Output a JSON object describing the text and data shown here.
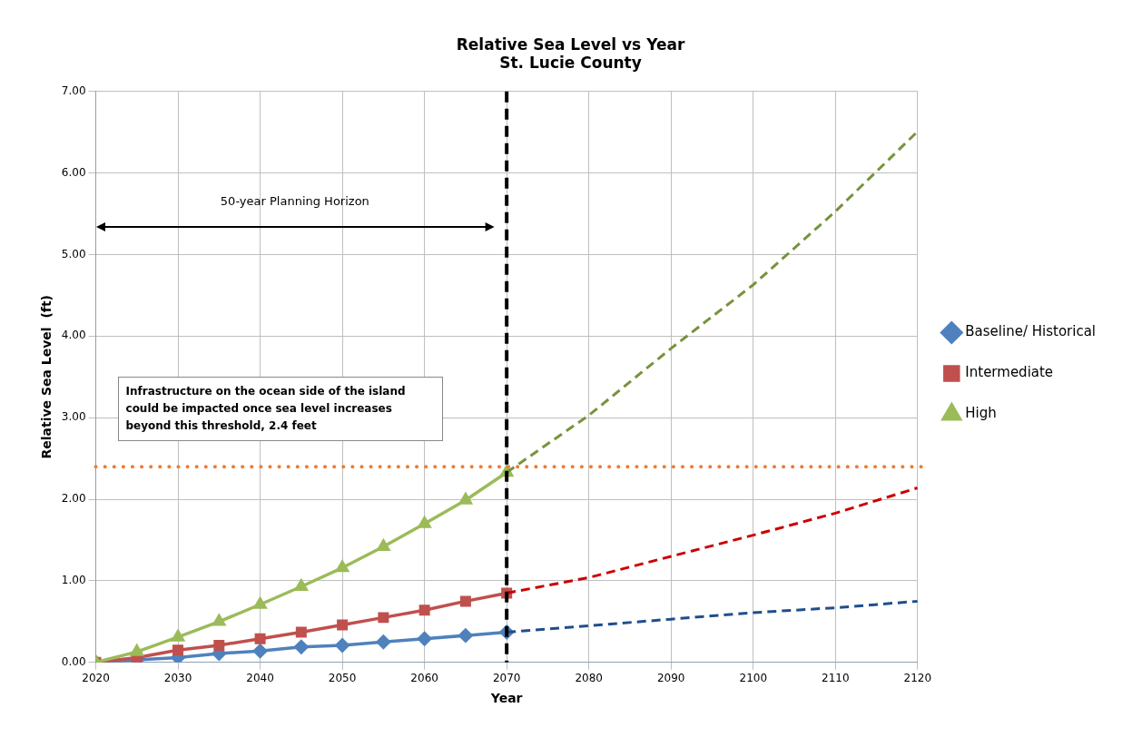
{
  "chart_data": {
    "type": "line",
    "title": "Relative Sea Level vs Year",
    "subtitle": "St. Lucie County",
    "xlabel": "Year",
    "ylabel": "Relative Sea Level  (ft)",
    "xlim": [
      2020,
      2120
    ],
    "xticks": [
      2020,
      2030,
      2040,
      2050,
      2060,
      2070,
      2080,
      2090,
      2100,
      2110,
      2120
    ],
    "ylim": [
      0,
      7
    ],
    "yticks": [
      {
        "value": 0,
        "label": "0.00"
      },
      {
        "value": 1,
        "label": "1.00"
      },
      {
        "value": 2,
        "label": "2.00"
      },
      {
        "value": 3,
        "label": "3.00"
      },
      {
        "value": 4,
        "label": "4.00"
      },
      {
        "value": 5,
        "label": "5.00"
      },
      {
        "value": 6,
        "label": "6.00"
      },
      {
        "value": 7,
        "label": "7.00"
      }
    ],
    "grid": true,
    "legend": "right",
    "series": [
      {
        "name": "Baseline/ Historical",
        "color": "#4f81bd",
        "marker": "diamond",
        "line_style": "solid",
        "x": [
          2020,
          2025,
          2030,
          2035,
          2040,
          2045,
          2050,
          2055,
          2060,
          2065,
          2070
        ],
        "values": [
          0,
          0.03,
          0.06,
          0.11,
          0.14,
          0.19,
          0.21,
          0.25,
          0.29,
          0.33,
          0.37
        ]
      },
      {
        "name": "Intermediate",
        "color": "#c0504d",
        "marker": "square",
        "line_style": "solid",
        "x": [
          2020,
          2025,
          2030,
          2035,
          2040,
          2045,
          2050,
          2055,
          2060,
          2065,
          2070
        ],
        "values": [
          0,
          0.06,
          0.15,
          0.21,
          0.29,
          0.37,
          0.46,
          0.55,
          0.64,
          0.75,
          0.85
        ]
      },
      {
        "name": "High",
        "color": "#9bbb59",
        "marker": "triangle",
        "line_style": "solid",
        "x": [
          2020,
          2025,
          2030,
          2035,
          2040,
          2045,
          2050,
          2055,
          2060,
          2065,
          2070
        ],
        "values": [
          0,
          0.13,
          0.31,
          0.5,
          0.71,
          0.93,
          1.16,
          1.42,
          1.7,
          1.99,
          2.33
        ]
      },
      {
        "color": "#1f4e8c",
        "marker": "none",
        "line_style": "dashed",
        "x": [
          2070,
          2080,
          2090,
          2100,
          2110,
          2120
        ],
        "values": [
          0.37,
          0.45,
          0.53,
          0.61,
          0.67,
          0.75
        ]
      },
      {
        "color": "#cc0000",
        "marker": "none",
        "line_style": "dashed",
        "x": [
          2070,
          2080,
          2090,
          2100,
          2110,
          2120
        ],
        "values": [
          0.85,
          1.04,
          1.3,
          1.56,
          1.83,
          2.14
        ]
      },
      {
        "color": "#77933c",
        "marker": "none",
        "line_style": "dashed",
        "x": [
          2070,
          2080,
          2090,
          2100,
          2110,
          2120
        ],
        "values": [
          2.33,
          3.03,
          3.85,
          4.63,
          5.53,
          6.51
        ]
      }
    ],
    "ref_lines": [
      {
        "axis": "x",
        "value": 2070,
        "color": "#000000",
        "line_style": "dashed"
      },
      {
        "axis": "y",
        "value": 2.4,
        "color": "#ed7d31",
        "line_style": "dotted"
      }
    ],
    "annotations": [
      "50-year Planning Horizon",
      "Infrastructure on the ocean side of the island could be impacted once sea level increases beyond this threshold, 2.4 feet"
    ]
  }
}
